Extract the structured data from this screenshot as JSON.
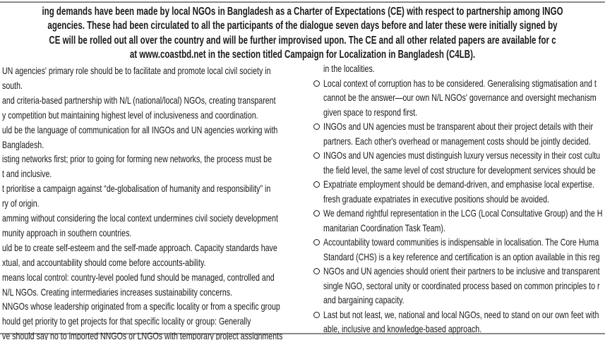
{
  "header": {
    "lines": [
      "ing demands have been made by local NGOs in Bangladesh as a Charter of Expectations (CE) with respect to partnership among INGO",
      "agencies. These had been circulated to all the participants of the dialogue seven days before and later these were initially signed by",
      "CE will be rolled out all over the country and will be further improvised upon. The CE and all other related papers are available for c",
      "at www.coastbd.net in the section titled Campaign for Localization in Bangladesh (C4LB)."
    ]
  },
  "left_column": {
    "items": [
      {
        "lines": [
          "UN agencies' primary role should be to facilitate and promote local civil society in",
          "south."
        ]
      },
      {
        "lines": [
          "and criteria-based partnership with N/L (national/local) NGOs, creating transparent",
          "y competition but maintaining highest level of inclusiveness and coordination."
        ]
      },
      {
        "lines": [
          "uld be the language of communication for all INGOs and UN agencies working with",
          "Bangladesh."
        ]
      },
      {
        "lines": [
          "isting networks first; prior to going for forming new networks, the process must be",
          "t and inclusive."
        ]
      },
      {
        "lines": [
          "t prioritise a campaign against “de-globalisation of humanity and responsibility” in",
          "ry of origin."
        ]
      },
      {
        "lines": [
          "amming without considering the local context undermines civil society development",
          "munity approach in southern countries."
        ]
      },
      {
        "lines": [
          "uld be to create self-esteem and the self-made approach. Capacity standards have",
          "xtual, and accountability should come before accounts-ability."
        ]
      },
      {
        "lines": [
          "means local control: country-level pooled fund should be managed, controlled and",
          "N/L NGOs. Creating intermediaries increases sustainability concerns."
        ]
      },
      {
        "lines": [
          "NNGOs whose leadership originated from a specific locality or from a specific group",
          "hould get priority to get projects for that specific locality or group: Generally",
          "ve should say no to imported NNGOs or LNGOs with temporary project assignments"
        ]
      }
    ]
  },
  "right_column": {
    "continuation": "in the localities.",
    "items": [
      {
        "lines": [
          "Local context of corruption has to be considered. Generalising stigmatisation and t",
          "cannot be the answer—our own N/L NGOs' governance and oversight mechanism",
          "given space to respond first."
        ]
      },
      {
        "lines": [
          "INGOs and UN agencies must be transparent about their project details with their",
          "partners. Each other's overhead or management costs should be jointly decided."
        ]
      },
      {
        "lines": [
          "INGOs and UN agencies must distinguish luxury versus necessity in their cost cultu",
          "the field level, the same level of cost structure for development services should be"
        ]
      },
      {
        "lines": [
          "Expatriate employment should be demand-driven, and emphasise local expertise.",
          "fresh graduate expatriates in executive positions should be avoided."
        ]
      },
      {
        "lines": [
          "We demand rightful representation in the LCG (Local Consultative Group) and the H",
          "manitarian Coordination Task Team)."
        ]
      },
      {
        "lines": [
          "Accountability toward communities is indispensable in localisation. The Core Huma",
          "Standard (CHS) is a key reference and certification is an option available in this reg"
        ]
      },
      {
        "lines": [
          "NGOs and UN agencies should orient their partners to be inclusive and transparent",
          "single NGO, sectoral unity or coordinated process based on common principles to r",
          "and bargaining capacity."
        ]
      },
      {
        "lines": [
          "Last but not least, we, national and local NGOs, need to stand on our own feet with",
          "able, inclusive and knowledge-based approach."
        ]
      }
    ]
  }
}
